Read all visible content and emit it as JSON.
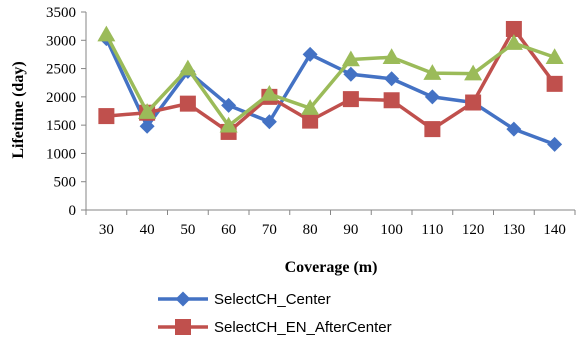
{
  "chart_data": {
    "type": "line",
    "title": "",
    "xlabel": "Coverage (m)",
    "ylabel": "Lifetime (day)",
    "ylim": [
      0,
      3500
    ],
    "yticks": [
      0,
      500,
      1000,
      1500,
      2000,
      2500,
      3000,
      3500
    ],
    "categories": [
      "30",
      "40",
      "50",
      "60",
      "70",
      "80",
      "90",
      "100",
      "110",
      "120",
      "130",
      "140"
    ],
    "grid": false,
    "legend_position": "bottom",
    "series": [
      {
        "name": "SelectCH_Center",
        "color": "#4472C4",
        "marker": "diamond",
        "values": [
          3030,
          1480,
          2450,
          1850,
          1560,
          2750,
          2400,
          2320,
          2000,
          1900,
          1430,
          1160
        ]
      },
      {
        "name": "SelectCH_EN_AfterCenter",
        "color": "#C0504D",
        "marker": "square",
        "values": [
          1660,
          1720,
          1880,
          1380,
          2000,
          1580,
          1960,
          1940,
          1430,
          1900,
          3200,
          2230
        ]
      },
      {
        "name": "",
        "color": "#9BBB59",
        "marker": "triangle",
        "values": [
          3100,
          1730,
          2500,
          1490,
          2050,
          1800,
          2660,
          2700,
          2420,
          2410,
          2950,
          2700
        ]
      }
    ]
  }
}
